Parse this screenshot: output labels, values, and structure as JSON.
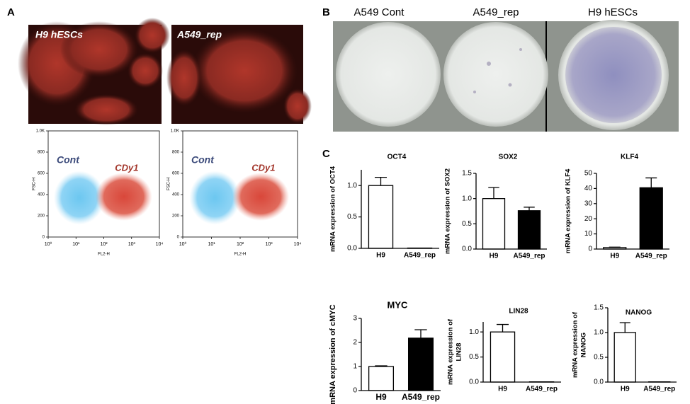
{
  "panel_labels": [
    "A",
    "B",
    "C"
  ],
  "microscopy": [
    "H9 hESCs",
    "A549_rep"
  ],
  "flow": [
    {
      "xlabel": "FL2-H",
      "ylabel": "FSC-H",
      "populations": [
        "Cont",
        "CDy1"
      ],
      "ylim": [
        0,
        1000
      ],
      "xlim": [
        1,
        10000
      ],
      "log_x": true,
      "yticks": [
        0,
        200,
        400,
        600,
        800,
        {
          "value": 1000,
          "label": "1.0K"
        }
      ],
      "xticks": [
        {
          "value": 1,
          "label": "10⁰"
        },
        {
          "value": 10,
          "label": "10¹"
        },
        {
          "value": 100,
          "label": "10²"
        },
        {
          "value": 1000,
          "label": "10³"
        },
        {
          "value": 10000,
          "label": "10⁴"
        }
      ]
    },
    {
      "xlabel": "FL2-H",
      "ylabel": "FSC-H",
      "populations": [
        "Cont",
        "CDy1"
      ],
      "ylim": [
        0,
        1000
      ],
      "xlim": [
        1,
        10000
      ],
      "log_x": true,
      "yticks": [
        0,
        200,
        400,
        600,
        800,
        {
          "value": 1000,
          "label": "1.0K"
        }
      ],
      "xticks": [
        {
          "value": 1,
          "label": "10⁰"
        },
        {
          "value": 10,
          "label": "10¹"
        },
        {
          "value": 100,
          "label": "10²"
        },
        {
          "value": 1000,
          "label": "10³"
        },
        {
          "value": 10000,
          "label": "10⁴"
        }
      ]
    }
  ],
  "plates": [
    "A549 Cont",
    "A549_rep",
    "H9 hESCs"
  ],
  "chart_data": [
    {
      "type": "bar",
      "title": "OCT4",
      "ylabel": "mRNA expression of OCT4",
      "categories": [
        "H9",
        "A549_rep"
      ],
      "values": [
        1.0,
        0.005
      ],
      "errors": [
        0.13,
        0
      ],
      "colors": [
        "#ffffff",
        "#000000"
      ],
      "ylim": [
        0,
        1.25
      ],
      "yticks": [
        {
          "value": 0,
          "label": "0.0"
        },
        {
          "value": 0.5,
          "label": "0.5"
        },
        {
          "value": 1,
          "label": "1.0"
        }
      ]
    },
    {
      "type": "bar",
      "title": "SOX2",
      "ylabel": "mRNA expression of SOX2",
      "categories": [
        "H9",
        "A549_rep"
      ],
      "values": [
        1.0,
        0.76
      ],
      "errors": [
        0.22,
        0.07
      ],
      "colors": [
        "#ffffff",
        "#000000"
      ],
      "ylim": [
        0,
        1.5
      ],
      "yticks": [
        {
          "value": 0,
          "label": "0.0"
        },
        {
          "value": 0.5,
          "label": "0.5"
        },
        {
          "value": 1,
          "label": "1.0"
        },
        {
          "value": 1.5,
          "label": "1.5"
        }
      ]
    },
    {
      "type": "bar",
      "title": "KLF4",
      "ylabel": "mRNA expression of KLF4",
      "categories": [
        "H9",
        "A549_rep"
      ],
      "values": [
        1.0,
        40.5
      ],
      "errors": [
        0.3,
        6.5
      ],
      "colors": [
        "#ffffff",
        "#000000"
      ],
      "ylim": [
        0,
        50
      ],
      "yticks": [
        0,
        10,
        20,
        30,
        40,
        50
      ]
    },
    {
      "type": "bar",
      "title": "MYC",
      "ylabel": "mRNA expression of cMYC",
      "categories": [
        "H9",
        "A549_rep"
      ],
      "values": [
        1.0,
        2.18
      ],
      "errors": [
        0.03,
        0.35
      ],
      "colors": [
        "#ffffff",
        "#000000"
      ],
      "ylim": [
        0,
        3
      ],
      "yticks": [
        0,
        1,
        2,
        3
      ]
    },
    {
      "type": "bar",
      "title": "LIN28",
      "ylabel": [
        "mRNA expression of",
        "LIN28"
      ],
      "categories": [
        "H9",
        "A549_rep"
      ],
      "values": [
        1.0,
        0.005
      ],
      "errors": [
        0.15,
        0
      ],
      "colors": [
        "#ffffff",
        "#000000"
      ],
      "ylim": [
        0,
        1.2
      ],
      "yticks": [
        {
          "value": 0,
          "label": "0.0"
        },
        {
          "value": 0.5,
          "label": "0.5"
        },
        {
          "value": 1,
          "label": "1.0"
        }
      ]
    },
    {
      "type": "bar",
      "title": "NANOG",
      "ylabel": [
        "mRNA expression of",
        "NANOG"
      ],
      "categories": [
        "H9",
        "A549_rep"
      ],
      "values": [
        1.0,
        0.005
      ],
      "errors": [
        0.2,
        0
      ],
      "colors": [
        "#ffffff",
        "#000000"
      ],
      "ylim": [
        0,
        1.5
      ],
      "yticks": [
        {
          "value": 0,
          "label": "0.0"
        },
        {
          "value": 0.5,
          "label": "0.5"
        },
        {
          "value": 1,
          "label": "1.0"
        },
        {
          "value": 1.5,
          "label": "1.5"
        }
      ]
    }
  ]
}
